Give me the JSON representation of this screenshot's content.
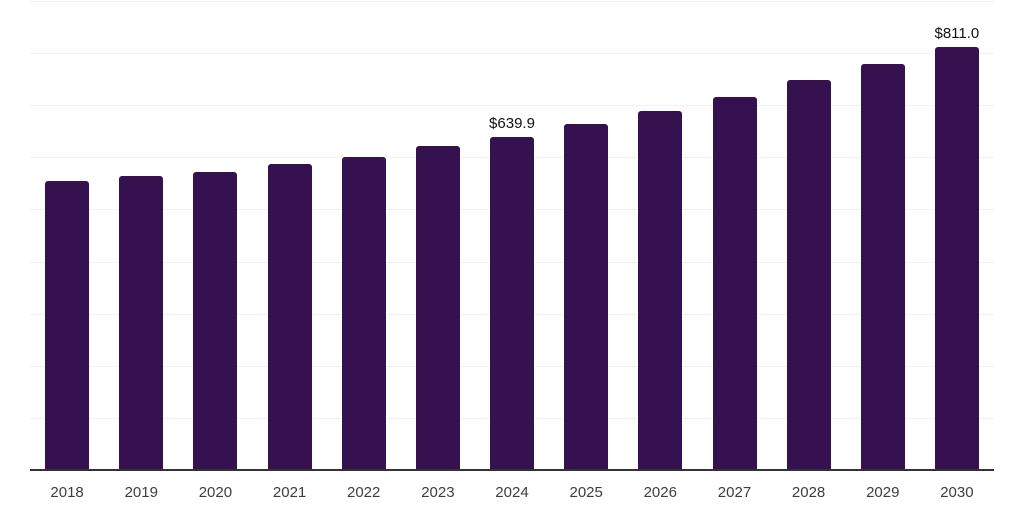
{
  "chart_data": {
    "type": "bar",
    "title": "",
    "xlabel": "",
    "ylabel": "",
    "categories": [
      "2018",
      "2019",
      "2020",
      "2021",
      "2022",
      "2023",
      "2024",
      "2025",
      "2026",
      "2027",
      "2028",
      "2029",
      "2030"
    ],
    "values": [
      555.3,
      564.4,
      572.7,
      587.4,
      601.5,
      622.0,
      639.9,
      664.5,
      689.3,
      716.1,
      748.0,
      778.3,
      811.0
    ],
    "annotations": [
      {
        "category": "2024",
        "text": "$639.9"
      },
      {
        "category": "2030",
        "text": "$811.0"
      }
    ],
    "ylim": [
      0,
      900
    ],
    "grid_step": 100,
    "grid": true,
    "y_axis_labels_visible": false,
    "legend": false,
    "colors": {
      "bar": "#36114F",
      "gridline": "#F2F2F2",
      "axis_line": "#333333",
      "tick_label": "#3D3D3D",
      "annotation": "#111111"
    }
  }
}
